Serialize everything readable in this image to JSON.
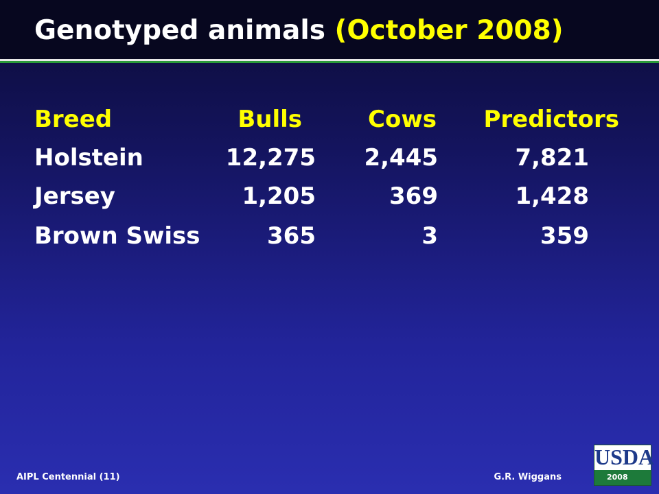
{
  "header": {
    "title": "Genotyped animals",
    "title_highlight": "(October 2008)"
  },
  "table": {
    "columns": [
      "Breed",
      "Bulls",
      "Cows",
      "Predictors"
    ],
    "rows": [
      [
        "Holstein",
        "12,275",
        "2,445",
        "7,821"
      ],
      [
        "Jersey",
        "1,205",
        "369",
        "1,428"
      ],
      [
        "Brown Swiss",
        "365",
        "3",
        "359"
      ]
    ]
  },
  "footer": {
    "left": "AIPL Centennial (11)",
    "right": "G.R. Wiggans"
  },
  "logo": {
    "text": "USDA",
    "year": "2008"
  }
}
